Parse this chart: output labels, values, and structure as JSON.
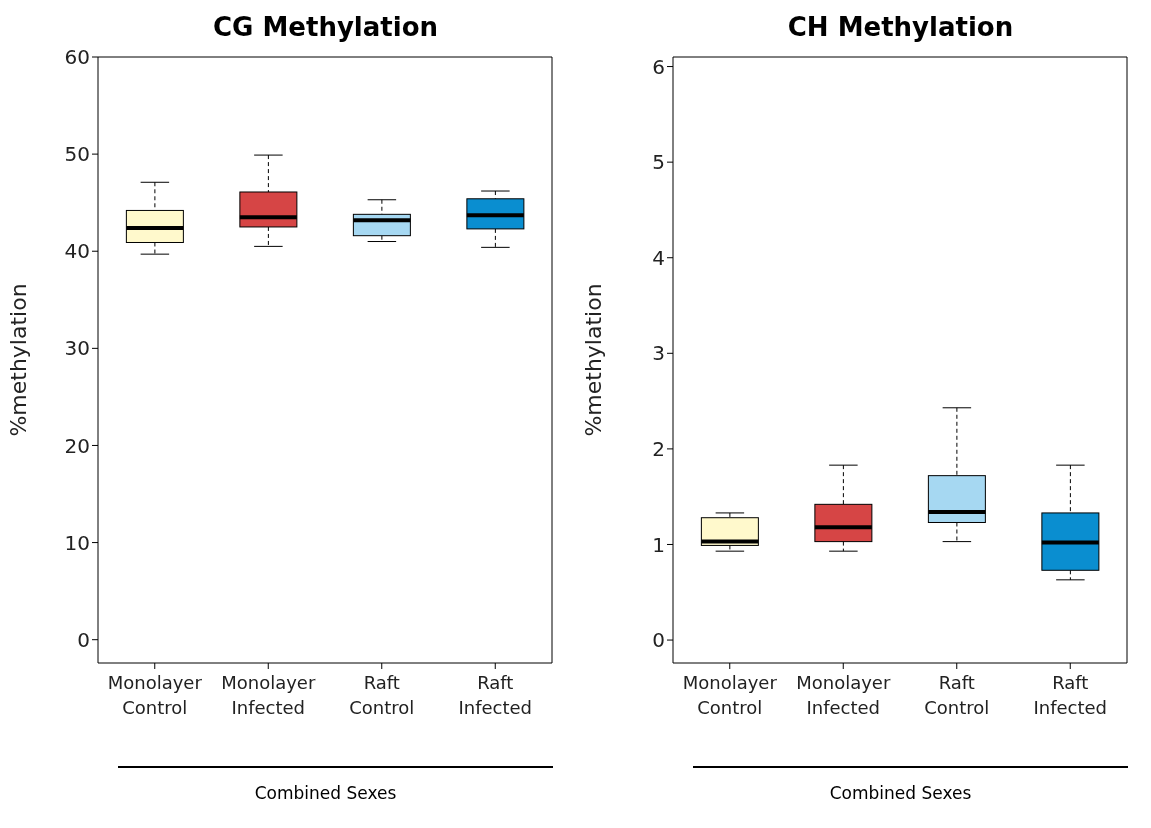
{
  "chart_data": [
    {
      "type": "box",
      "title": "CG Methylation",
      "ylabel": "%methylation",
      "xlabel": "Combined Sexes",
      "categories": [
        "Monolayer Control",
        "Monolayer Infected",
        "Raft Control",
        "Raft Infected"
      ],
      "colors": [
        "#fff9cc",
        "#d64545",
        "#a6d8f2",
        "#0a8ed0"
      ],
      "ylim": [
        -2.4,
        60
      ],
      "yticks": [
        0,
        10,
        20,
        30,
        40,
        50,
        60
      ],
      "boxes": [
        {
          "low": 39.7,
          "q1": 40.9,
          "median": 42.4,
          "q3": 44.2,
          "high": 47.1
        },
        {
          "low": 40.5,
          "q1": 42.5,
          "median": 43.5,
          "q3": 46.1,
          "high": 49.9
        },
        {
          "low": 41.0,
          "q1": 41.6,
          "median": 43.2,
          "q3": 43.8,
          "high": 45.3
        },
        {
          "low": 40.4,
          "q1": 42.3,
          "median": 43.7,
          "q3": 45.4,
          "high": 46.2
        }
      ]
    },
    {
      "type": "box",
      "title": "CH Methylation",
      "ylabel": "%methylation",
      "xlabel": "Combined Sexes",
      "categories": [
        "Monolayer Control",
        "Monolayer Infected",
        "Raft Control",
        "Raft Infected"
      ],
      "colors": [
        "#fff9cc",
        "#d64545",
        "#a6d8f2",
        "#0a8ed0"
      ],
      "ylim": [
        -0.24,
        6.1
      ],
      "yticks": [
        0,
        1,
        2,
        3,
        4,
        5,
        6
      ],
      "boxes": [
        {
          "low": 0.93,
          "q1": 0.99,
          "median": 1.03,
          "q3": 1.28,
          "high": 1.33
        },
        {
          "low": 0.93,
          "q1": 1.03,
          "median": 1.18,
          "q3": 1.42,
          "high": 1.83
        },
        {
          "low": 1.03,
          "q1": 1.23,
          "median": 1.34,
          "q3": 1.72,
          "high": 2.43
        },
        {
          "low": 0.63,
          "q1": 0.73,
          "median": 1.02,
          "q3": 1.33,
          "high": 1.83
        }
      ]
    }
  ]
}
